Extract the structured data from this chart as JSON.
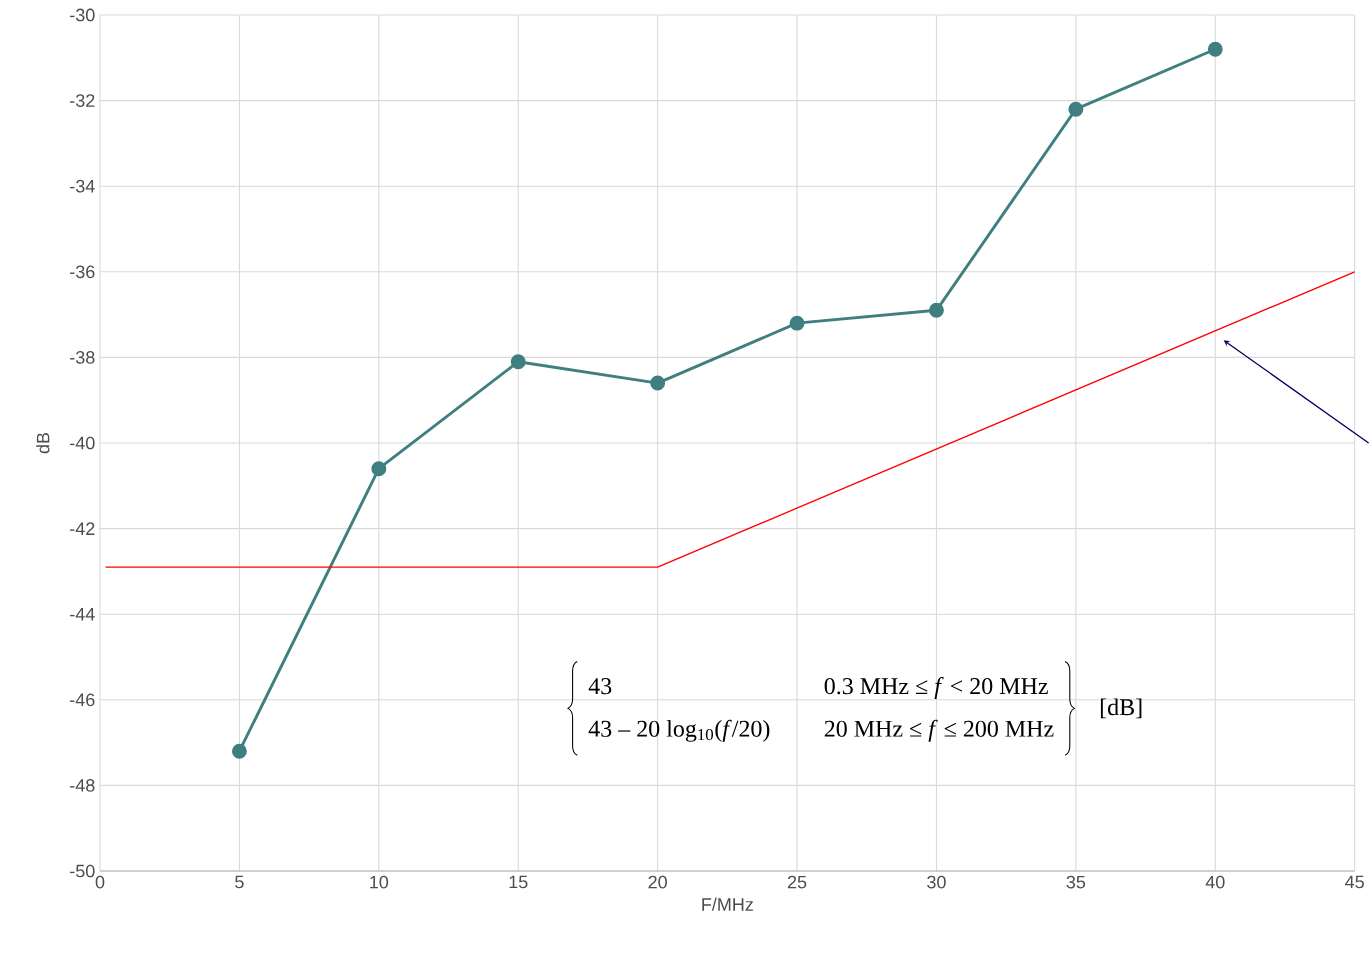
{
  "chart_data": {
    "type": "line",
    "xlabel": "F/MHz",
    "ylabel": "dB",
    "xlim": [
      0,
      45
    ],
    "ylim": [
      -50,
      -30
    ],
    "xticks": [
      0,
      5,
      10,
      15,
      20,
      25,
      30,
      35,
      40,
      45
    ],
    "yticks": [
      -50,
      -48,
      -46,
      -44,
      -42,
      -40,
      -38,
      -36,
      -34,
      -32,
      -30
    ],
    "grid": true,
    "series": [
      {
        "color": "#3f7f7f",
        "marker": "circle",
        "x": [
          5,
          10,
          15,
          20,
          25,
          30,
          35,
          40
        ],
        "values": [
          -47.2,
          -40.6,
          -38.1,
          -38.6,
          -37.2,
          -36.9,
          -32.2,
          -30.8
        ]
      },
      {
        "color": "#ff0000",
        "marker": "none",
        "x": [
          0.2,
          20,
          45
        ],
        "values": [
          -42.9,
          -42.9,
          -36.0
        ]
      }
    ],
    "annotations": [
      "43",
      "0.3 MHz ≤ *f* < 20 MHz",
      "43 – 20 log$_{10}$(*f*/20)",
      "20 MHz ≤ *f* ≤ 200 MHz",
      "[dB]"
    ]
  }
}
